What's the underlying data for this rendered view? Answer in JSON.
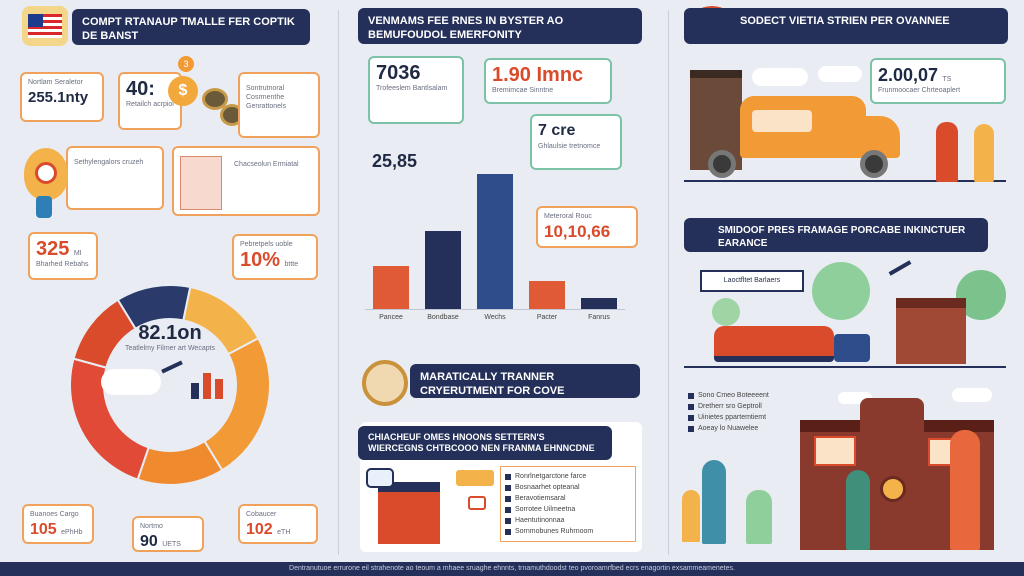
{
  "left": {
    "title": "COMPT RTANAUP TMALLE FER COPTIK DE BANST",
    "card1": {
      "value": "255.1nty",
      "label": "Nortlam Seraletor"
    },
    "card2": {
      "value": "40:",
      "label": "Retailch acrpiol"
    },
    "card3": {
      "label": "Sontrutnoral Cosrmenthe Genrattonels"
    },
    "card4": {
      "label": "Sethylengalors cruzeh"
    },
    "card5": {
      "label": "Chacseolun Ermiatal"
    },
    "stat_left": {
      "value": "325",
      "unit": "MI",
      "label": "Bharhed Rebahs"
    },
    "stat_right": {
      "value": "10%",
      "unit": "bttte",
      "label": "Pebretpels uoble"
    },
    "donut_center": {
      "value": "82.1on",
      "label": "Teatlelmy Filmer art Wecapts"
    },
    "stat_bottom1": {
      "value": "105",
      "unit": "ePhHb",
      "label": "Buanoes Cargo"
    },
    "stat_bottom2": {
      "value": "90",
      "unit": "UETS",
      "label": "Nortmo"
    },
    "stat_bottom3": {
      "value": "102",
      "unit": "eTH",
      "label": "Cobaucer"
    },
    "donut_segments": [
      {
        "color": "#2a3a6b",
        "value": 12
      },
      {
        "color": "#f3b24a",
        "value": 14
      },
      {
        "color": "#f29a36",
        "value": 24
      },
      {
        "color": "#ef8a2f",
        "value": 14
      },
      {
        "color": "#e14a36",
        "value": 24
      },
      {
        "color": "#d94b2b",
        "value": 12
      }
    ]
  },
  "middle": {
    "title": "VENMAMS FEE RNES IN BYSTER AO BEMUFOUDOL EMERFONITY",
    "card1": {
      "value": "7036",
      "label": "Trofeeslem Bantlsalam"
    },
    "card2": {
      "value": "1.90 Imnc",
      "label": "Bremimcae Sinntne"
    },
    "card3": {
      "value": "7 cre",
      "label": "Ghlaulsie tretnomce"
    },
    "card4": {
      "value": "10,10,66",
      "label": "Meteroral Rouc"
    },
    "stat_left": "25,85",
    "chart_categories": [
      "Pancee",
      "Bondbase",
      "Wechs",
      "Pacter",
      "Fanrus"
    ],
    "section_title": "MARATICALLY TRANNER CRYERUTMENT FOR COVE",
    "subsection_title": "CHIACHEUF OMES HNOONS SETTERN'S WIERCEGNS CHTBCOOO NEN FRANMA EHNNCDNE",
    "list": [
      "Ronrlnetgarctone farce",
      "Bosnaarhet opteanal",
      "Beravotiemsaral",
      "Sorrotee Uilmeetna",
      "Haentutinonnaa",
      "Sornmobunes Ruhrnoom"
    ]
  },
  "chart_data": {
    "type": "bar",
    "categories": [
      "Pancee",
      "Bondbase",
      "Wechs",
      "Pacter",
      "Fanrus"
    ],
    "values": [
      30,
      55,
      95,
      20,
      8
    ],
    "colors": [
      "#e05a36",
      "#24305a",
      "#2f4d8a",
      "#e05a36",
      "#24305a"
    ]
  },
  "right": {
    "title": "SODECT VIETIA STRIEN PER OVANNEE",
    "card1": {
      "value": "2.00,07",
      "unit": "TS",
      "label": "Frunmoocaer Chrteoaplert"
    },
    "section_title": "SMIDOOF PRES FRAMAGE PORCABE INKINCTUER EARANCE",
    "signboard": "Laoctfltet Barlaers",
    "list": [
      "Sono Cmeo Boteeeent",
      "Dretherr sro Geptroll",
      "Uinietes ppartemtiemt",
      "Aoeay lo Nuawelee"
    ]
  },
  "footer": "Dentranutuoe errurone eil strahenote ao teoum a mhaee sruaghe ehnnts, trnamuthdoodst teo pvoroamrfbed ecrs enagortin exsammeamenetes."
}
